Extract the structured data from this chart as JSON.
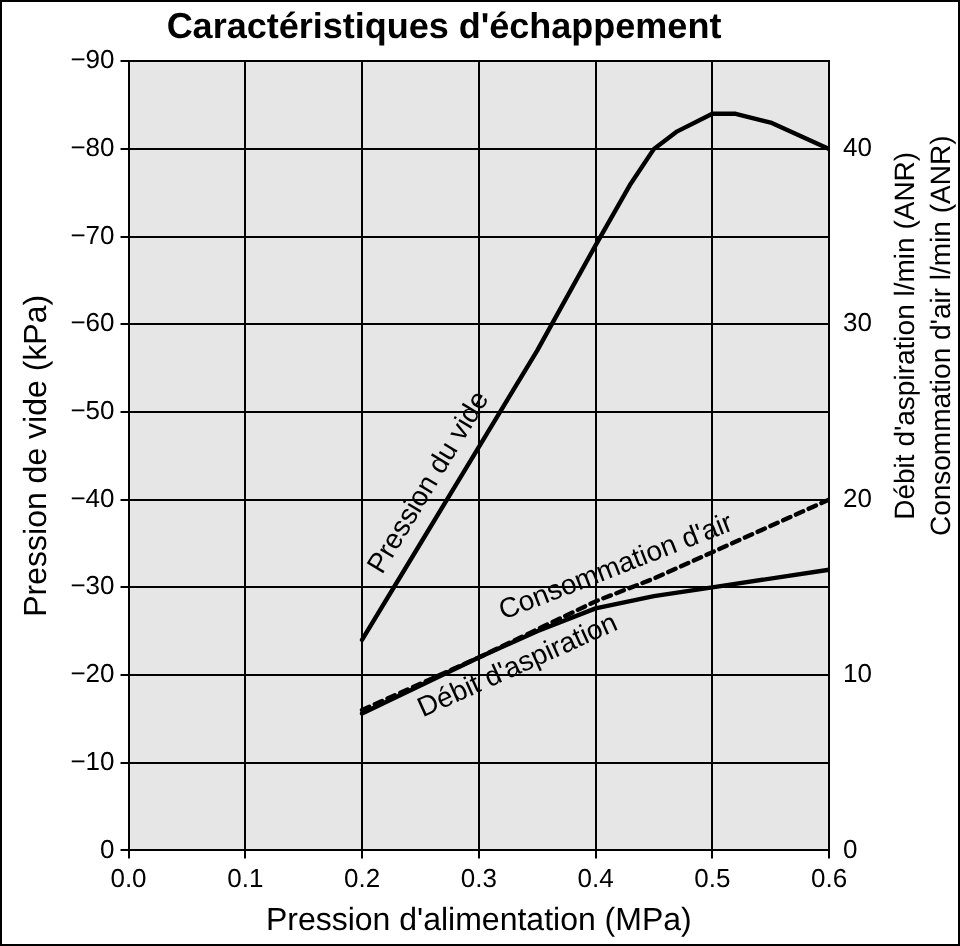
{
  "chart_data": {
    "type": "line",
    "title": "Caractéristiques d'échappement",
    "xlabel": "Pression d'alimentation (MPa)",
    "ylabel": "Pression de vide (kPa)",
    "y2label": "Débit d'aspiration l/min (ANR)\nConsommation d'air l/min (ANR)",
    "xlim": [
      0,
      0.6
    ],
    "xticks": [
      {
        "value": 0,
        "label": "0.0"
      },
      0.1,
      0.2,
      0.3,
      0.4,
      0.5,
      0.6
    ],
    "ylim": [
      0,
      -90
    ],
    "yticks": [
      0,
      {
        "value": -10,
        "label": "−10"
      },
      {
        "value": -20,
        "label": "−20"
      },
      {
        "value": -30,
        "label": "−30"
      },
      {
        "value": -40,
        "label": "−40"
      },
      {
        "value": -50,
        "label": "−50"
      },
      {
        "value": -60,
        "label": "−60"
      },
      {
        "value": -70,
        "label": "−70"
      },
      {
        "value": -80,
        "label": "−80"
      },
      {
        "value": -90,
        "label": "−90"
      }
    ],
    "y2lim": [
      0,
      45
    ],
    "y2ticks": [
      0,
      10,
      20,
      30,
      40
    ],
    "grid": true,
    "legend": false,
    "marker": "none",
    "series": [
      {
        "name": "Pression du vide",
        "color": "#000000",
        "x": [
          0.2,
          0.25,
          0.3,
          0.35,
          0.4,
          0.43,
          0.45,
          0.47,
          0.5,
          0.52,
          0.55,
          0.6
        ],
        "values": [
          -24,
          -35,
          -46,
          -57,
          -69,
          -76,
          -80,
          -82,
          -84,
          -84,
          -83,
          -80
        ]
      },
      {
        "name": "Consommation d'air",
        "color": "#000000",
        "axis": "y2",
        "line_style": "dashed",
        "x": [
          0.2,
          0.3,
          0.4,
          0.45,
          0.5,
          0.6
        ],
        "values": [
          8,
          11,
          14.2,
          15.5,
          17,
          20
        ]
      },
      {
        "name": "Débit d'aspiration",
        "color": "#000000",
        "axis": "y2",
        "x": [
          0.2,
          0.3,
          0.35,
          0.4,
          0.45,
          0.5,
          0.6
        ],
        "values": [
          7.8,
          11,
          12.5,
          13.8,
          14.5,
          15,
          16
        ]
      }
    ]
  }
}
